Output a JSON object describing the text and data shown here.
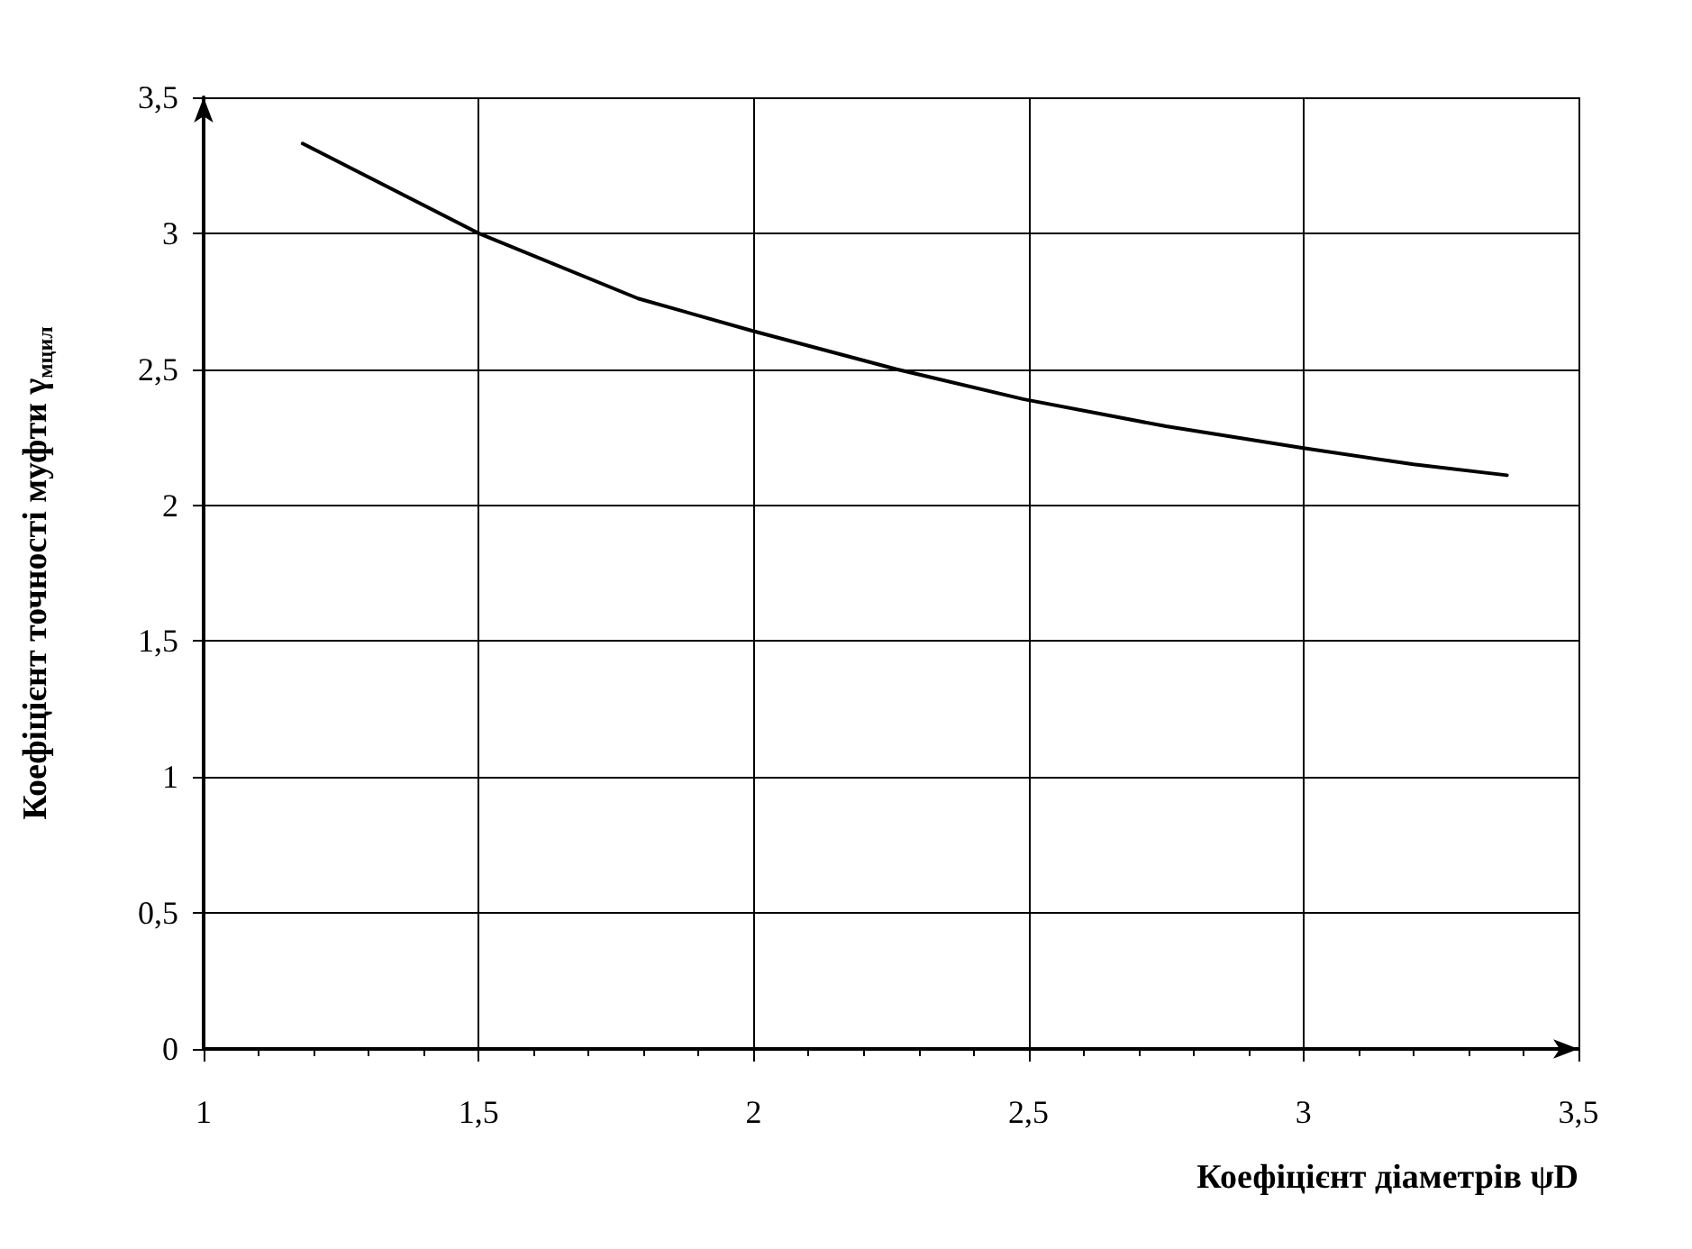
{
  "chart_data": {
    "type": "line",
    "xlabel": "Коефіцієнт діаметрів ψD",
    "ylabel": "Коефіцієнт точності муфти γ$_{мцил}$",
    "series": [
      {
        "color": "#000000",
        "x": [
          1.18,
          1.5,
          1.79,
          2.0,
          2.26,
          2.49,
          2.75,
          3.0,
          3.2,
          3.37
        ],
        "values": [
          3.33,
          3.0,
          2.76,
          2.64,
          2.5,
          2.39,
          2.29,
          2.21,
          2.15,
          2.11
        ]
      }
    ],
    "xlim": [
      1,
      3.5
    ],
    "ylim": [
      0,
      3.5
    ],
    "xticks": [
      1,
      {
        "value": 1.5,
        "label": "1,5"
      },
      2,
      {
        "value": 2.5,
        "label": "2,5"
      },
      3,
      {
        "value": 3.5,
        "label": "3,5"
      }
    ],
    "yticks": [
      0,
      {
        "value": 0.5,
        "label": "0,5"
      },
      1,
      {
        "value": 1.5,
        "label": "1,5"
      },
      2,
      {
        "value": 2.5,
        "label": "2,5"
      },
      3,
      {
        "value": 3.5,
        "label": "3,5"
      }
    ],
    "grid": true,
    "marker": "none",
    "line_style": "solid"
  }
}
